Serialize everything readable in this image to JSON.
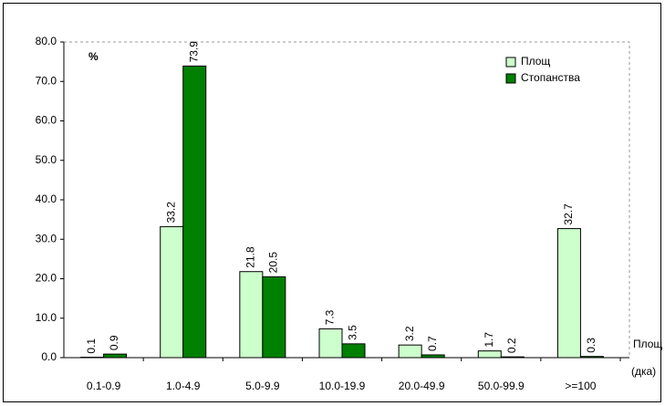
{
  "chart_data": {
    "type": "bar",
    "y_label": "%",
    "x_label": "Площ",
    "x_unit": "(дка)",
    "categories": [
      "0.1-0.9",
      "1.0-4.9",
      "5.0-9.9",
      "10.0-19.9",
      "20.0-49.9",
      "50.0-99.9",
      ">=100"
    ],
    "series": [
      {
        "name": "Площ",
        "color": "#ccffcc",
        "values": [
          0.1,
          33.2,
          21.8,
          7.3,
          3.2,
          1.7,
          32.7
        ]
      },
      {
        "name": "Стопанства",
        "color": "#008000",
        "values": [
          0.9,
          73.9,
          20.5,
          3.5,
          0.7,
          0.2,
          0.3
        ]
      }
    ],
    "ylim": [
      0,
      80
    ],
    "yticks": [
      {
        "value": 0,
        "label": "0.0"
      },
      {
        "value": 10,
        "label": "10.0"
      },
      {
        "value": 20,
        "label": "20.0"
      },
      {
        "value": 30,
        "label": "30.0"
      },
      {
        "value": 40,
        "label": "40.0"
      },
      {
        "value": 50,
        "label": "50.0"
      },
      {
        "value": 60,
        "label": "60.0"
      },
      {
        "value": 70,
        "label": "70.0"
      },
      {
        "value": 80,
        "label": "80.0"
      }
    ],
    "legend": "top-right",
    "grid": false
  }
}
